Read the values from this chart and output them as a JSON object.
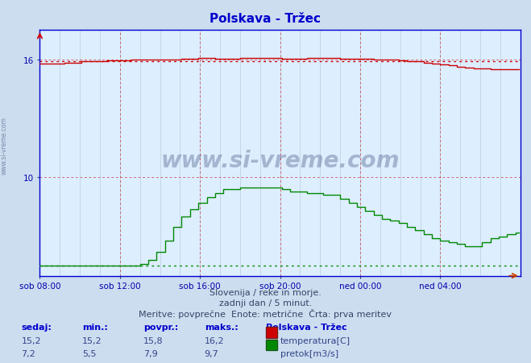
{
  "title": "Polskava - Tržec",
  "bg_color": "#ccddf0",
  "plot_bg_color": "#ddeeff",
  "grid_color_v": "#bbccdd",
  "grid_color_h": "#bbccdd",
  "xlabel_ticks": [
    "sob 08:00",
    "sob 12:00",
    "sob 16:00",
    "sob 20:00",
    "ned 00:00",
    "ned 04:00"
  ],
  "ylim_min": 5.0,
  "ylim_max": 17.5,
  "xlim": [
    0,
    288
  ],
  "ylabel_ticks": [
    10,
    16
  ],
  "temp_color": "#cc0000",
  "flow_color": "#008800",
  "watermark": "www.si-vreme.com",
  "subtitle1": "Slovenija / reke in morje.",
  "subtitle2": "zadnji dan / 5 minut.",
  "subtitle3": "Meritve: povprečne  Enote: metrične  Črta: prva meritev",
  "legend_title": "Polskava - Tržec",
  "legend_rows": [
    {
      "label": "temperatura[C]",
      "color": "#cc0000",
      "sedaj": "15,2",
      "min": "15,2",
      "povpr": "15,8",
      "maks": "16,2"
    },
    {
      "label": "pretok[m3/s]",
      "color": "#008800",
      "sedaj": "7,2",
      "min": "5,5",
      "povpr": "7,9",
      "maks": "9,7"
    }
  ],
  "table_headers": [
    "sedaj:",
    "min.:",
    "povpr.:",
    "maks.:"
  ],
  "temp_avg_value": 15.9,
  "flow_avg_value": 5.5,
  "n_points": 288
}
